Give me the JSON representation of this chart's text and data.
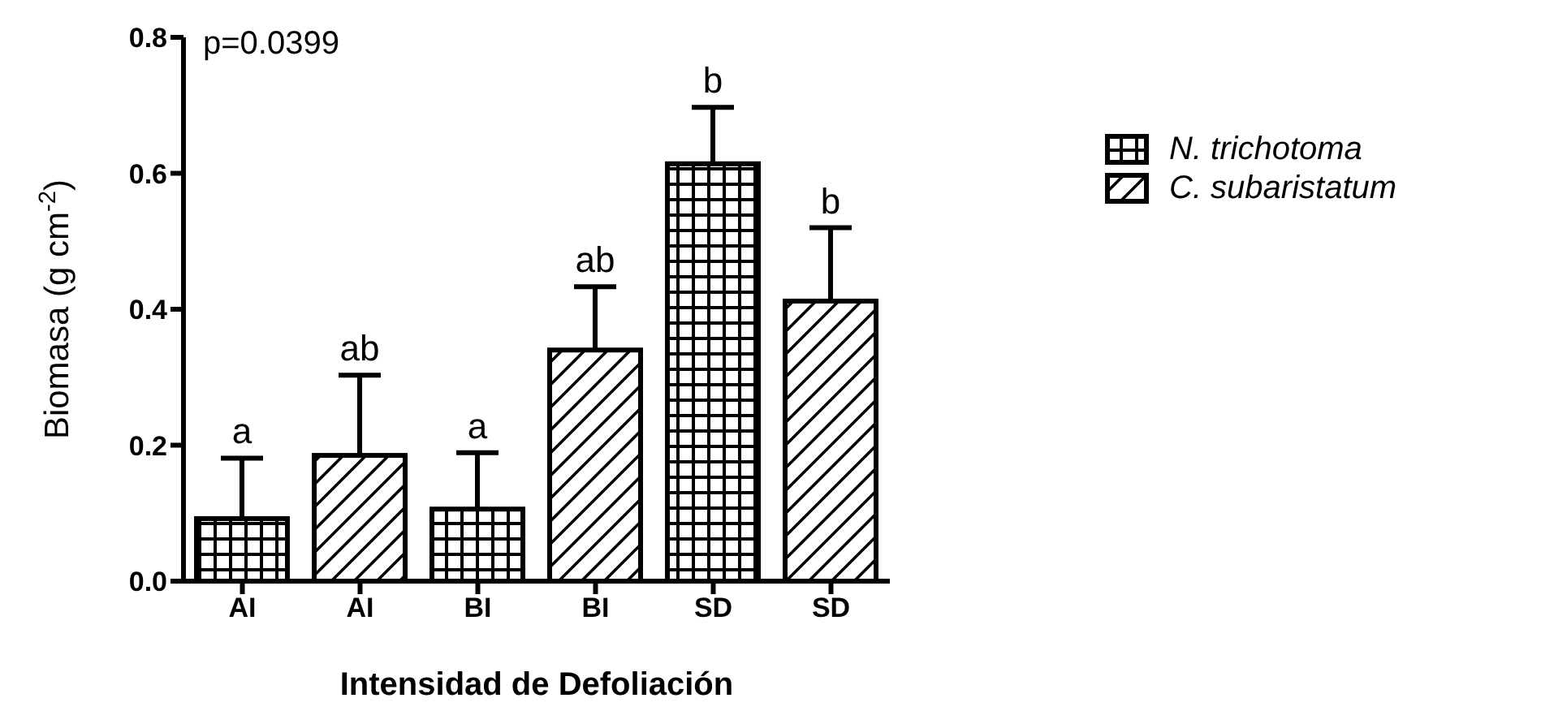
{
  "chart_data": {
    "type": "bar",
    "xlabel": "Intensidad de Defoliación",
    "ylabel": "Biomasa (g cm$^{-2}$)",
    "annotations": [
      "p=0.0399"
    ],
    "categories": [
      "AI",
      "AI",
      "BI",
      "BI",
      "SD",
      "SD"
    ],
    "series": [
      {
        "name": "N. trichotoma",
        "color": "#000000",
        "values": [
          0.092,
          null,
          0.106,
          null,
          0.614,
          null
        ],
        "errors": [
          [
            0.092,
            0.181
          ],
          null,
          [
            0.106,
            0.189
          ],
          null,
          [
            0.614,
            0.697
          ],
          null
        ],
        "value_labels": [
          "a",
          null,
          "a",
          null,
          "b",
          null
        ]
      },
      {
        "name": "C. subaristatum",
        "color": "#000000",
        "values": [
          null,
          0.185,
          null,
          0.34,
          null,
          0.412
        ],
        "errors": [
          null,
          [
            0.185,
            0.303
          ],
          null,
          [
            0.34,
            0.433
          ],
          null,
          [
            0.412,
            0.52
          ]
        ],
        "value_labels": [
          null,
          "ab",
          null,
          "ab",
          null,
          "b"
        ]
      }
    ],
    "ylim": [
      0,
      0.8
    ],
    "yticks": [
      {
        "value": 0,
        "label": "0.0"
      },
      0.2,
      0.4,
      0.6,
      0.8
    ],
    "grid": false,
    "legend": "top right"
  }
}
